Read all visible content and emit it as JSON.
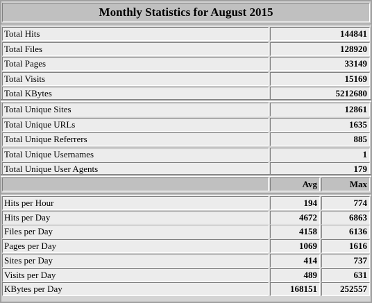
{
  "title": "Monthly Statistics for August 2015",
  "totals": [
    {
      "label": "Total Hits",
      "value": "144841"
    },
    {
      "label": "Total Files",
      "value": "128920"
    },
    {
      "label": "Total Pages",
      "value": "33149"
    },
    {
      "label": "Total Visits",
      "value": "15169"
    },
    {
      "label": "Total KBytes",
      "value": "5212680"
    }
  ],
  "uniques": [
    {
      "label": "Total Unique Sites",
      "value": "12861"
    },
    {
      "label": "Total Unique URLs",
      "value": "1635"
    },
    {
      "label": "Total Unique Referrers",
      "value": "885"
    },
    {
      "label": "Total Unique Usernames",
      "value": "1"
    },
    {
      "label": "Total Unique User Agents",
      "value": "179"
    }
  ],
  "avgmax_header": {
    "avg": "Avg",
    "max": "Max"
  },
  "rates": [
    {
      "label": "Hits per Hour",
      "avg": "194",
      "max": "774"
    },
    {
      "label": "Hits per Day",
      "avg": "4672",
      "max": "6863"
    },
    {
      "label": "Files per Day",
      "avg": "4158",
      "max": "6136"
    },
    {
      "label": "Pages per Day",
      "avg": "1069",
      "max": "1616"
    },
    {
      "label": "Sites per Day",
      "avg": "414",
      "max": "737"
    },
    {
      "label": "Visits per Day",
      "avg": "489",
      "max": "631"
    },
    {
      "label": "KBytes per Day",
      "avg": "168151",
      "max": "252557"
    }
  ]
}
